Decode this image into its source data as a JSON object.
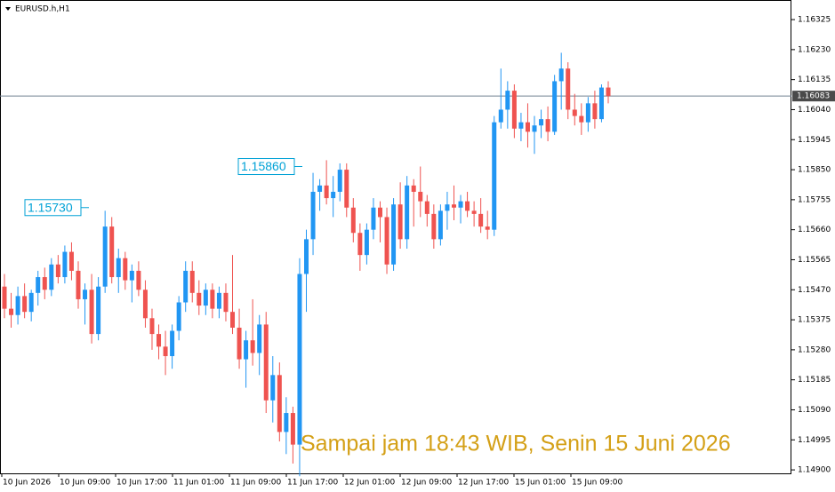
{
  "chart_data": {
    "type": "candlestick",
    "title": "EURUSD.h,H1",
    "annotation": "Sampai jam 18:43 WIB, Senin 15 Juni 2026",
    "up_color": "#2196f3",
    "down_color": "#ef5350",
    "ylim": [
      1.14889,
      1.16387
    ],
    "yticks": [
      1.16325,
      {
        "value": 1.1623,
        "label": "1.16230"
      },
      1.16135,
      {
        "value": 1.1604,
        "label": "1.16040"
      },
      1.15945,
      {
        "value": 1.1585,
        "label": "1.15850"
      },
      1.15755,
      {
        "value": 1.1566,
        "label": "1.15660"
      },
      1.15565,
      {
        "value": 1.1547,
        "label": "1.15470"
      },
      1.15375,
      {
        "value": 1.1528,
        "label": "1.15280"
      },
      1.15185,
      {
        "value": 1.1509,
        "label": "1.15090"
      },
      1.14995,
      {
        "value": 1.149,
        "label": "1.14900"
      }
    ],
    "current_price": 1.16083,
    "levels": [
      {
        "value": 1.1573,
        "label": "1.15730"
      },
      {
        "value": 1.1586,
        "label": "1.15860"
      }
    ],
    "xtick_labels": [
      "10 Jun 2026",
      "10 Jun 09:00",
      "10 Jun 17:00",
      "11 Jun 01:00",
      "11 Jun 09:00",
      "11 Jun 17:00",
      "12 Jun 01:00",
      "12 Jun 09:00",
      "12 Jun 17:00",
      "15 Jun 01:00",
      "15 Jun 09:00"
    ],
    "open": [
      1.1548,
      1.1541,
      1.1539,
      1.1545,
      1.154,
      1.1546,
      1.1551,
      1.1547,
      1.1555,
      1.1551,
      1.1559,
      1.1553,
      1.1544,
      1.1547,
      1.1533,
      1.1548,
      1.1567,
      1.1551,
      1.1557,
      1.155,
      1.1553,
      1.1547,
      1.1538,
      1.1533,
      1.1529,
      1.1526,
      1.1534,
      1.1543,
      1.1553,
      1.1546,
      1.1542,
      1.1547,
      1.1541,
      1.1546,
      1.154,
      1.1535,
      1.1525,
      1.1531,
      1.1527,
      1.1536,
      1.1512,
      1.152,
      1.1502,
      1.1508,
      1.1498,
      1.1552,
      1.1563,
      1.1578,
      1.158,
      1.1576,
      1.1578,
      1.1585,
      1.1573,
      1.1565,
      1.1558,
      1.1566,
      1.1573,
      1.157,
      1.1555,
      1.1574,
      1.1563,
      1.158,
      1.1578,
      1.1575,
      1.1571,
      1.1563,
      1.1572,
      1.1574,
      1.1573,
      1.1575,
      1.1572,
      1.1571,
      1.1567,
      1.1566,
      1.16,
      1.1604,
      1.161,
      1.1598,
      1.16,
      1.1597,
      1.1599,
      1.1601,
      1.1597,
      1.1613,
      1.1617,
      1.1604,
      1.1602,
      1.16,
      1.1606,
      1.1601,
      1.1611
    ],
    "high": [
      1.1552,
      1.1546,
      1.1548,
      1.1549,
      1.1547,
      1.1553,
      1.1554,
      1.1557,
      1.1558,
      1.1561,
      1.1562,
      1.1556,
      1.1549,
      1.1552,
      1.1551,
      1.1572,
      1.157,
      1.156,
      1.1559,
      1.1555,
      1.1556,
      1.155,
      1.1541,
      1.1536,
      1.1534,
      1.1536,
      1.1545,
      1.1556,
      1.1556,
      1.155,
      1.1549,
      1.1549,
      1.1548,
      1.1549,
      1.1558,
      1.1541,
      1.1534,
      1.1544,
      1.1539,
      1.154,
      1.1526,
      1.1524,
      1.1513,
      1.151,
      1.1557,
      1.1566,
      1.1584,
      1.1582,
      1.1588,
      1.1583,
      1.1587,
      1.1587,
      1.1576,
      1.1568,
      1.1568,
      1.1576,
      1.1575,
      1.1573,
      1.1576,
      1.1581,
      1.1583,
      1.1582,
      1.1586,
      1.1577,
      1.1574,
      1.1574,
      1.1578,
      1.158,
      1.1577,
      1.1578,
      1.1575,
      1.1576,
      1.1572,
      1.1602,
      1.1617,
      1.1613,
      1.1612,
      1.1603,
      1.1606,
      1.1602,
      1.1604,
      1.1605,
      1.1615,
      1.1622,
      1.1619,
      1.1609,
      1.1606,
      1.1608,
      1.161,
      1.1612,
      1.1613
    ],
    "low": [
      1.1538,
      1.1535,
      1.1536,
      1.1538,
      1.1537,
      1.1542,
      1.1544,
      1.1545,
      1.1549,
      1.1549,
      1.155,
      1.1541,
      1.1536,
      1.153,
      1.1531,
      1.1546,
      1.1549,
      1.1546,
      1.1547,
      1.1543,
      1.1545,
      1.1535,
      1.1528,
      1.1525,
      1.152,
      1.1522,
      1.1531,
      1.154,
      1.1543,
      1.1539,
      1.1539,
      1.1538,
      1.1538,
      1.1537,
      1.1533,
      1.1522,
      1.1516,
      1.1523,
      1.152,
      1.1508,
      1.1505,
      1.1499,
      1.1495,
      1.1492,
      1.1488,
      1.154,
      1.1558,
      1.1572,
      1.1574,
      1.157,
      1.1575,
      1.157,
      1.1562,
      1.1553,
      1.1555,
      1.1563,
      1.1562,
      1.1552,
      1.1553,
      1.156,
      1.156,
      1.1567,
      1.157,
      1.1567,
      1.156,
      1.1561,
      1.1566,
      1.1569,
      1.1568,
      1.157,
      1.1567,
      1.1565,
      1.1563,
      1.1564,
      1.1598,
      1.1598,
      1.1595,
      1.1594,
      1.1592,
      1.159,
      1.1595,
      1.1594,
      1.1596,
      1.1604,
      1.1601,
      1.1599,
      1.1596,
      1.1597,
      1.1598,
      1.16,
      1.1606
    ],
    "close": [
      1.1541,
      1.1539,
      1.1545,
      1.154,
      1.1546,
      1.1551,
      1.1547,
      1.1555,
      1.1551,
      1.1559,
      1.1553,
      1.1544,
      1.1547,
      1.1533,
      1.1548,
      1.1567,
      1.1551,
      1.1557,
      1.155,
      1.1553,
      1.1547,
      1.1538,
      1.1533,
      1.1529,
      1.1526,
      1.1534,
      1.1543,
      1.1553,
      1.1546,
      1.1542,
      1.1547,
      1.1541,
      1.1546,
      1.154,
      1.1535,
      1.1525,
      1.1531,
      1.1527,
      1.1536,
      1.1512,
      1.152,
      1.1502,
      1.1508,
      1.1498,
      1.1552,
      1.1563,
      1.1578,
      1.158,
      1.1576,
      1.1578,
      1.1585,
      1.1573,
      1.1565,
      1.1558,
      1.1566,
      1.1573,
      1.157,
      1.1555,
      1.1574,
      1.1563,
      1.158,
      1.1578,
      1.1575,
      1.1571,
      1.1563,
      1.1572,
      1.1574,
      1.1573,
      1.1575,
      1.1572,
      1.1571,
      1.1567,
      1.1566,
      1.16,
      1.1604,
      1.161,
      1.1598,
      1.16,
      1.1597,
      1.1599,
      1.1601,
      1.1597,
      1.1613,
      1.1617,
      1.1604,
      1.1602,
      1.16,
      1.1606,
      1.1601,
      1.1611,
      1.16083
    ]
  }
}
